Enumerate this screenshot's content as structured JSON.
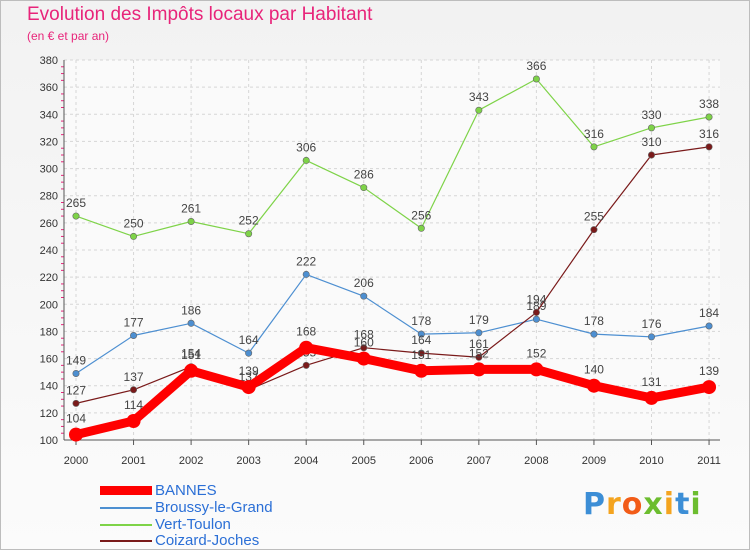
{
  "chart_data": {
    "type": "line",
    "title": "Evolution des Impôts locaux par Habitant",
    "subtitle": "(en € et par an)",
    "xlabel": "",
    "ylabel": "",
    "x": [
      "2000",
      "2001",
      "2002",
      "2003",
      "2004",
      "2005",
      "2006",
      "2007",
      "2008",
      "2009",
      "2010",
      "2011"
    ],
    "ylim": [
      100,
      380
    ],
    "yticks": [
      100,
      120,
      140,
      160,
      180,
      200,
      220,
      240,
      260,
      280,
      300,
      320,
      340,
      360,
      380
    ],
    "grid": true,
    "legend_position": "bottom-left",
    "series": [
      {
        "name": "BANNES",
        "color": "#ff0000",
        "values": [
          104,
          114,
          151,
          139,
          168,
          160,
          151,
          152,
          152,
          140,
          131,
          139
        ]
      },
      {
        "name": "Broussy-le-Grand",
        "color": "#4d8fd1",
        "values": [
          149,
          177,
          186,
          164,
          222,
          206,
          178,
          179,
          189,
          178,
          176,
          184
        ]
      },
      {
        "name": "Vert-Toulon",
        "color": "#7ed348",
        "values": [
          265,
          250,
          261,
          252,
          306,
          286,
          256,
          343,
          366,
          316,
          330,
          338
        ]
      },
      {
        "name": "Coizard-Joches",
        "color": "#7a1a1a",
        "values": [
          127,
          137,
          154,
          137,
          155,
          168,
          164,
          161,
          194,
          255,
          310,
          316
        ]
      }
    ]
  },
  "brand": {
    "letters": [
      "P",
      "r",
      "o",
      "x",
      "i",
      "t",
      "i"
    ],
    "colors": [
      "#3c8ed6",
      "#f4a41f",
      "#f25c18",
      "#6cbd2f",
      "#f4a41f",
      "#3c8ed6",
      "#6cbd2f"
    ]
  }
}
